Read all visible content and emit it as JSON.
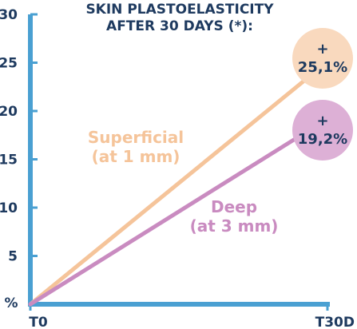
{
  "chart_data": {
    "type": "line",
    "title": [
      "SKIN PLASTOELASTICITY",
      "AFTER 30 DAYS (*):"
    ],
    "ylabel": "%",
    "ylim": [
      0,
      30
    ],
    "y_ticks": [
      5,
      10,
      15,
      20,
      25,
      30
    ],
    "x_categories": [
      "T0",
      "T30D"
    ],
    "grid": false,
    "series": [
      {
        "name": "Superficial (at 1 mm)",
        "label_lines": [
          "Superficial",
          "(at 1 mm)"
        ],
        "values": [
          0,
          25.1
        ],
        "color": "#F5C49A",
        "badge": {
          "sign": "+",
          "text": "25,1%",
          "color": "#F9D9BE"
        }
      },
      {
        "name": "Deep (at 3 mm)",
        "label_lines": [
          "Deep",
          "(at 3 mm)"
        ],
        "values": [
          0,
          19.2
        ],
        "color": "#C98BC0",
        "badge": {
          "sign": "+",
          "text": "19,2%",
          "color": "#DDB0D6"
        }
      }
    ]
  },
  "colors": {
    "axis": "#4AA0D2",
    "text": "#1E3A5F"
  }
}
